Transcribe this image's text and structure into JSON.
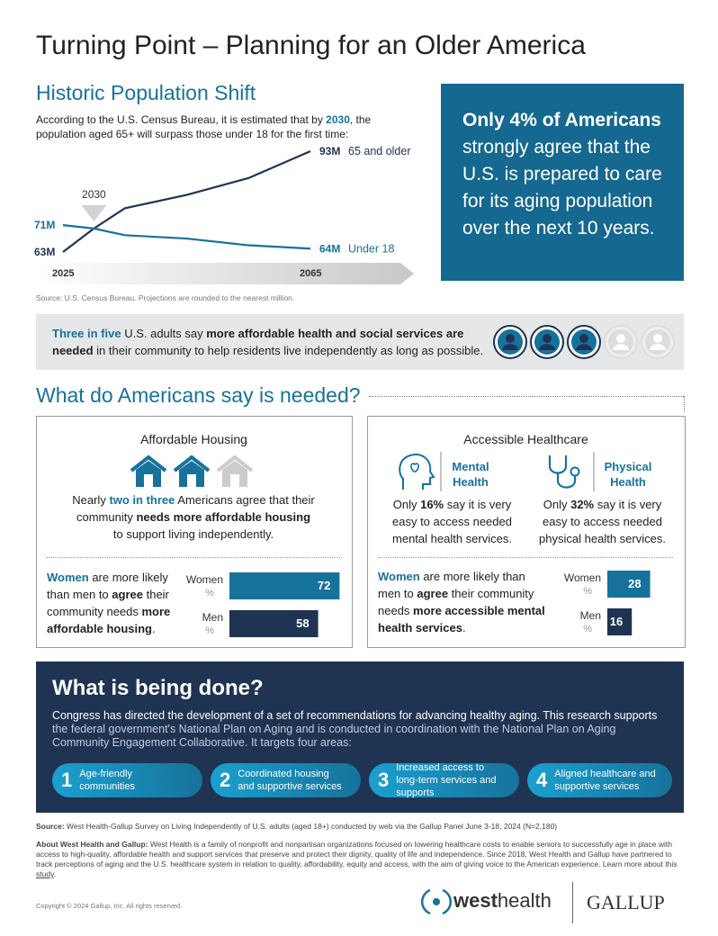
{
  "title": "Turning Point – Planning for an Older America",
  "population": {
    "heading": "Historic Population Shift",
    "intro": [
      "According to the U.S. Census Bureau, it is estimated that by ",
      "2030",
      ", the population aged 65+ will surpass those under 18 for the first time:"
    ],
    "chart": {
      "type": "line",
      "x": [
        2025,
        2030,
        2035,
        2045,
        2055,
        2065
      ],
      "xlim": [
        2025,
        2065
      ],
      "xticks": [
        2025,
        2065
      ],
      "marker": "2030",
      "series": [
        {
          "name": "65 and older",
          "color": "#1f3352",
          "values": [
            63,
            70,
            76,
            80,
            85,
            93
          ],
          "value_labels": [
            "63M",
            null,
            null,
            null,
            null,
            "93M"
          ]
        },
        {
          "name": "Under 18",
          "color": "#17729b",
          "values": [
            71,
            70,
            68,
            67,
            65,
            64
          ],
          "value_labels": [
            "71M",
            null,
            null,
            null,
            null,
            "64M"
          ]
        }
      ]
    },
    "source": "Source: U.S. Census Bureau. Projections are rounded to the nearest million."
  },
  "highlight": [
    "Only 4% of Americans",
    " strongly agree that the U.S. is prepared to care for its aging population over the next 10 years."
  ],
  "banner": {
    "text": [
      "Three in five",
      " U.S. adults say ",
      "more affordable health and social services are needed",
      " in their community to help residents live independently as long as possible."
    ],
    "icons": {
      "filled": 3,
      "total": 5
    }
  },
  "needed_heading": "What do Americans say is needed?",
  "housing": {
    "title": "Affordable Housing",
    "houses": {
      "filled": 2,
      "total": 3
    },
    "statement": [
      "Nearly ",
      "two in three",
      " Americans agree that their community ",
      "needs more affordable housing",
      " to support living independently."
    ],
    "comparison": [
      "Women",
      " are more likely than men to ",
      "agree",
      " their community needs ",
      "more affordable housing",
      "."
    ],
    "bars": {
      "categories": [
        "Women",
        "Men"
      ],
      "unit": "%",
      "values": [
        72,
        58
      ],
      "colors": [
        "#17729b",
        "#1f3352"
      ]
    }
  },
  "healthcare": {
    "title": "Accessible Healthcare",
    "mental": {
      "label": "Mental Health",
      "text": [
        "Only ",
        "16%",
        " say it is very easy to access needed mental health services."
      ]
    },
    "physical": {
      "label": "Physical Health",
      "text": [
        "Only ",
        "32%",
        " say it is very easy to access needed physical health services."
      ]
    },
    "comparison": [
      "Women",
      " are more likely than men to ",
      "agree",
      " their community needs ",
      "more accessible mental health services",
      "."
    ],
    "bars": {
      "categories": [
        "Women",
        "Men"
      ],
      "unit": "%",
      "values": [
        28,
        16
      ],
      "colors": [
        "#17729b",
        "#1f3352"
      ]
    }
  },
  "done": {
    "heading": "What is being done?",
    "body": [
      "Congress has directed the development of a set of recommendations for advancing healthy aging. This research supports",
      " the federal government's National Plan on Aging and is conducted in coordination with the National Plan on Aging Community Engagement Collaborative. It targets four areas:"
    ],
    "areas": [
      {
        "number": "1",
        "label": "Age-friendly communities"
      },
      {
        "number": "2",
        "label": "Coordinated housing and supportive services"
      },
      {
        "number": "3",
        "label": "Increased access to long-term services and supports"
      },
      {
        "number": "4",
        "label": "Aligned healthcare and supportive services"
      }
    ]
  },
  "footer": {
    "source": [
      "Source:",
      " West Health-Gallup Survey on Living Independently of U.S. adults (aged 18+) conducted by web via the Gallup Panel June 3-18, 2024 (N=2,180)"
    ],
    "about": [
      "About West Health and Gallup:",
      " West Health is a family of nonprofit and nonpartisan organizations focused on lowering healthcare costs to enable seniors to successfully age in place with access to high-quality, affordable health and support services that preserve and protect their dignity, quality of life and independence. Since 2018, West Health and Gallup have partnered to track perceptions of aging and the U.S. healthcare system in relation to quality, affordability, equity and access, with the aim of giving voice to the American experience. Learn more about this ",
      "study",
      "."
    ],
    "copyright": "Copyright © 2024 Gallup, Inc. All rights reserved.",
    "logo_west": [
      "west",
      "health"
    ],
    "logo_gallup": "GALLUP"
  }
}
